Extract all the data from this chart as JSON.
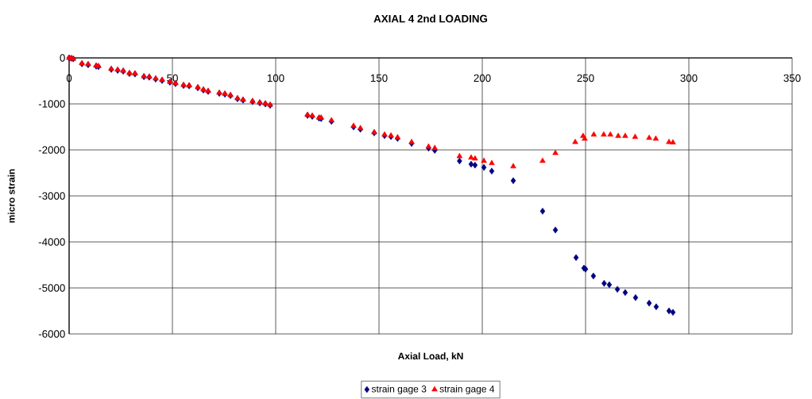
{
  "chart_data": {
    "type": "scatter",
    "title": "AXIAL 4 2nd LOADING",
    "xlabel": "Axial Load, kN",
    "ylabel": "micro strain",
    "xlim": [
      0,
      350
    ],
    "xticks": [
      0,
      50,
      100,
      150,
      200,
      250,
      300,
      350
    ],
    "ylim": [
      -6000,
      0
    ],
    "yticks": [
      -6000,
      -5000,
      -4000,
      -3000,
      -2000,
      -1000,
      0
    ],
    "grid": true,
    "legend": "bottom",
    "series": [
      {
        "name": "strain gage 3",
        "color": "#000080",
        "marker": "diamond",
        "x": [
          0,
          1,
          2,
          6.2,
          9.2,
          13.1,
          14.2,
          20.4,
          23.5,
          26.2,
          29.2,
          31.9,
          36.2,
          38.8,
          41.9,
          45,
          48.8,
          51.5,
          55.4,
          58.1,
          62.3,
          65,
          67.3,
          72.7,
          75.4,
          78.1,
          81.5,
          84.2,
          88.8,
          92.3,
          95,
          97.3,
          115.4,
          117.7,
          121,
          122,
          127,
          137.7,
          141,
          147.7,
          152.7,
          155.8,
          159,
          165.8,
          174,
          177,
          189,
          194.6,
          196.5,
          200.8,
          204.6,
          215,
          229.2,
          235.4,
          245.4,
          249.2,
          250,
          253.8,
          259,
          261.5,
          265.4,
          269.2,
          274.2,
          280.8,
          284.2,
          290.4,
          292.3
        ],
        "values": [
          0,
          -10,
          -20,
          -130,
          -150,
          -180,
          -190,
          -250,
          -270,
          -290,
          -340,
          -350,
          -410,
          -420,
          -460,
          -490,
          -530,
          -560,
          -600,
          -610,
          -650,
          -700,
          -730,
          -770,
          -790,
          -820,
          -890,
          -920,
          -950,
          -980,
          -1000,
          -1030,
          -1250,
          -1270,
          -1310,
          -1320,
          -1380,
          -1500,
          -1550,
          -1630,
          -1690,
          -1710,
          -1750,
          -1860,
          -1960,
          -2010,
          -2240,
          -2310,
          -2330,
          -2380,
          -2460,
          -2670,
          -3330,
          -3740,
          -4340,
          -4570,
          -4590,
          -4740,
          -4900,
          -4930,
          -5030,
          -5100,
          -5210,
          -5330,
          -5410,
          -5500,
          -5530
        ]
      },
      {
        "name": "strain gage 4",
        "color": "#ff0000",
        "marker": "triangle",
        "x": [
          0,
          1,
          2,
          6.2,
          9.2,
          13.1,
          14.2,
          20.4,
          23.5,
          26.2,
          29.2,
          31.9,
          36.2,
          38.8,
          41.9,
          45,
          48.8,
          51.5,
          55.4,
          58.1,
          62.3,
          65,
          67.3,
          72.7,
          75.4,
          78.1,
          81.5,
          84.2,
          88.8,
          92.3,
          95,
          97.3,
          115.4,
          117.7,
          121,
          122,
          127,
          137.7,
          141,
          147.7,
          152.7,
          155.8,
          159,
          165.8,
          174,
          177,
          189,
          194.6,
          196.5,
          200.8,
          204.6,
          215,
          229.2,
          235.4,
          245,
          248.8,
          249.6,
          254,
          258.8,
          262,
          265.8,
          269.2,
          274,
          280.8,
          284,
          290.4,
          292.3
        ],
        "values": [
          0,
          -10,
          -20,
          -120,
          -140,
          -170,
          -180,
          -240,
          -260,
          -280,
          -330,
          -340,
          -400,
          -410,
          -450,
          -480,
          -520,
          -550,
          -590,
          -600,
          -640,
          -690,
          -720,
          -760,
          -780,
          -810,
          -880,
          -910,
          -940,
          -970,
          -990,
          -1020,
          -1240,
          -1260,
          -1300,
          -1300,
          -1360,
          -1480,
          -1530,
          -1620,
          -1670,
          -1690,
          -1730,
          -1830,
          -1930,
          -1960,
          -2140,
          -2170,
          -2190,
          -2240,
          -2290,
          -2360,
          -2240,
          -2070,
          -1830,
          -1700,
          -1760,
          -1670,
          -1670,
          -1670,
          -1700,
          -1700,
          -1720,
          -1740,
          -1760,
          -1830,
          -1840
        ]
      }
    ]
  }
}
